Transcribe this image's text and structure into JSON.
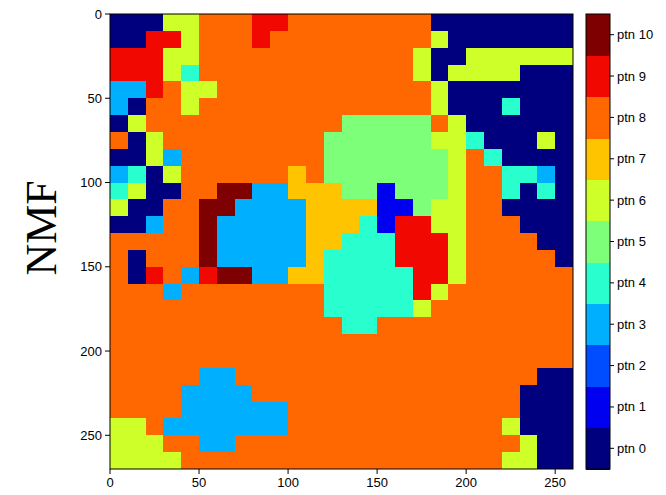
{
  "chart_data": {
    "type": "heatmap",
    "ylabel": "NMF",
    "xlim": [
      0,
      260
    ],
    "ylim": [
      270,
      0
    ],
    "xticks": [
      0,
      50,
      100,
      150,
      200,
      250
    ],
    "yticks": [
      0,
      50,
      100,
      150,
      200,
      250
    ],
    "colorbar_labels": [
      "ptn 0",
      "ptn 1",
      "ptn 2",
      "ptn 3",
      "ptn 4",
      "ptn 5",
      "ptn 6",
      "ptn 7",
      "ptn 8",
      "ptn 9",
      "ptn 10"
    ],
    "colors": [
      "#00007f",
      "#0000f1",
      "#004cff",
      "#00b0ff",
      "#29ffce",
      "#7dff7a",
      "#ceff29",
      "#ffc400",
      "#ff6800",
      "#f10800",
      "#7f0000"
    ],
    "cells": [
      [
        0,
        0,
        0,
        6,
        6,
        8,
        8,
        8,
        9,
        9,
        8,
        8,
        8,
        8,
        8,
        8,
        8,
        8,
        0,
        0,
        0,
        0,
        0,
        0,
        0,
        0
      ],
      [
        0,
        0,
        9,
        9,
        6,
        8,
        8,
        8,
        9,
        8,
        8,
        8,
        8,
        8,
        8,
        8,
        8,
        8,
        6,
        0,
        0,
        0,
        0,
        0,
        0,
        0
      ],
      [
        9,
        9,
        9,
        6,
        6,
        8,
        8,
        8,
        8,
        8,
        8,
        8,
        8,
        8,
        8,
        8,
        8,
        6,
        0,
        0,
        6,
        6,
        6,
        6,
        6,
        6
      ],
      [
        9,
        9,
        9,
        6,
        4,
        8,
        8,
        8,
        8,
        8,
        8,
        8,
        8,
        8,
        8,
        8,
        8,
        6,
        0,
        6,
        6,
        6,
        6,
        0,
        0,
        0
      ],
      [
        3,
        3,
        9,
        8,
        6,
        6,
        8,
        8,
        8,
        8,
        8,
        8,
        8,
        8,
        8,
        8,
        8,
        8,
        6,
        0,
        0,
        0,
        0,
        0,
        0,
        0
      ],
      [
        3,
        0,
        8,
        8,
        6,
        8,
        8,
        8,
        8,
        8,
        8,
        8,
        8,
        8,
        8,
        8,
        8,
        8,
        6,
        0,
        0,
        0,
        4,
        0,
        0,
        0
      ],
      [
        0,
        6,
        8,
        8,
        8,
        8,
        8,
        8,
        8,
        8,
        8,
        8,
        8,
        5,
        5,
        5,
        5,
        5,
        8,
        6,
        0,
        0,
        0,
        0,
        0,
        0
      ],
      [
        8,
        0,
        6,
        8,
        8,
        8,
        8,
        8,
        8,
        8,
        8,
        8,
        5,
        5,
        5,
        5,
        5,
        5,
        6,
        6,
        4,
        0,
        0,
        0,
        6,
        0
      ],
      [
        0,
        0,
        6,
        3,
        8,
        8,
        8,
        8,
        8,
        8,
        8,
        8,
        5,
        5,
        5,
        5,
        5,
        5,
        5,
        6,
        8,
        4,
        0,
        0,
        0,
        0
      ],
      [
        3,
        4,
        0,
        6,
        8,
        8,
        8,
        8,
        8,
        8,
        7,
        8,
        5,
        5,
        5,
        5,
        5,
        5,
        5,
        6,
        8,
        8,
        4,
        4,
        3,
        0
      ],
      [
        4,
        6,
        0,
        0,
        8,
        8,
        10,
        10,
        3,
        3,
        7,
        7,
        7,
        5,
        5,
        1,
        5,
        5,
        5,
        6,
        8,
        8,
        4,
        0,
        4,
        0
      ],
      [
        6,
        0,
        0,
        8,
        8,
        10,
        10,
        3,
        3,
        3,
        3,
        7,
        7,
        7,
        7,
        1,
        1,
        5,
        6,
        6,
        8,
        8,
        0,
        0,
        0,
        0
      ],
      [
        0,
        0,
        3,
        8,
        8,
        10,
        3,
        3,
        3,
        3,
        3,
        7,
        7,
        7,
        4,
        1,
        9,
        9,
        6,
        6,
        8,
        8,
        8,
        0,
        0,
        0
      ],
      [
        8,
        8,
        8,
        8,
        8,
        10,
        3,
        3,
        3,
        3,
        3,
        7,
        7,
        4,
        4,
        4,
        9,
        9,
        9,
        6,
        8,
        8,
        8,
        8,
        0,
        0
      ],
      [
        8,
        0,
        8,
        8,
        8,
        10,
        3,
        3,
        3,
        3,
        3,
        7,
        4,
        4,
        4,
        4,
        9,
        9,
        9,
        6,
        8,
        8,
        8,
        8,
        8,
        0
      ],
      [
        8,
        0,
        9,
        8,
        3,
        9,
        10,
        10,
        3,
        3,
        7,
        7,
        4,
        4,
        4,
        4,
        4,
        9,
        9,
        6,
        8,
        8,
        8,
        8,
        8,
        8
      ],
      [
        8,
        8,
        8,
        3,
        8,
        8,
        8,
        8,
        8,
        8,
        8,
        8,
        4,
        4,
        4,
        4,
        4,
        9,
        6,
        8,
        8,
        8,
        8,
        8,
        8,
        8
      ],
      [
        8,
        8,
        8,
        8,
        8,
        8,
        8,
        8,
        8,
        8,
        8,
        8,
        4,
        4,
        4,
        4,
        4,
        6,
        8,
        8,
        8,
        8,
        8,
        8,
        8,
        8
      ],
      [
        8,
        8,
        8,
        8,
        8,
        8,
        8,
        8,
        8,
        8,
        8,
        8,
        8,
        4,
        4,
        8,
        8,
        8,
        8,
        8,
        8,
        8,
        8,
        8,
        8,
        8
      ],
      [
        8,
        8,
        8,
        8,
        8,
        8,
        8,
        8,
        8,
        8,
        8,
        8,
        8,
        8,
        8,
        8,
        8,
        8,
        8,
        8,
        8,
        8,
        8,
        8,
        8,
        8
      ],
      [
        8,
        8,
        8,
        8,
        8,
        8,
        8,
        8,
        8,
        8,
        8,
        8,
        8,
        8,
        8,
        8,
        8,
        8,
        8,
        8,
        8,
        8,
        8,
        8,
        8,
        8
      ],
      [
        8,
        8,
        8,
        8,
        8,
        3,
        3,
        8,
        8,
        8,
        8,
        8,
        8,
        8,
        8,
        8,
        8,
        8,
        8,
        8,
        8,
        8,
        8,
        8,
        0,
        0
      ],
      [
        8,
        8,
        8,
        8,
        3,
        3,
        3,
        3,
        8,
        8,
        8,
        8,
        8,
        8,
        8,
        8,
        8,
        8,
        8,
        8,
        8,
        8,
        8,
        0,
        0,
        0
      ],
      [
        8,
        8,
        8,
        8,
        3,
        3,
        3,
        3,
        3,
        3,
        8,
        8,
        8,
        8,
        8,
        8,
        8,
        8,
        8,
        8,
        8,
        8,
        8,
        0,
        0,
        0
      ],
      [
        6,
        6,
        8,
        3,
        3,
        3,
        3,
        3,
        3,
        3,
        8,
        8,
        8,
        8,
        8,
        8,
        8,
        8,
        8,
        8,
        8,
        8,
        6,
        0,
        0,
        0
      ],
      [
        6,
        6,
        6,
        8,
        8,
        3,
        3,
        8,
        8,
        8,
        8,
        8,
        8,
        8,
        8,
        8,
        8,
        8,
        8,
        8,
        8,
        8,
        8,
        6,
        0,
        0
      ],
      [
        6,
        6,
        6,
        6,
        8,
        8,
        8,
        8,
        8,
        8,
        8,
        8,
        8,
        8,
        8,
        8,
        8,
        8,
        8,
        8,
        8,
        8,
        6,
        6,
        0,
        0
      ]
    ]
  }
}
